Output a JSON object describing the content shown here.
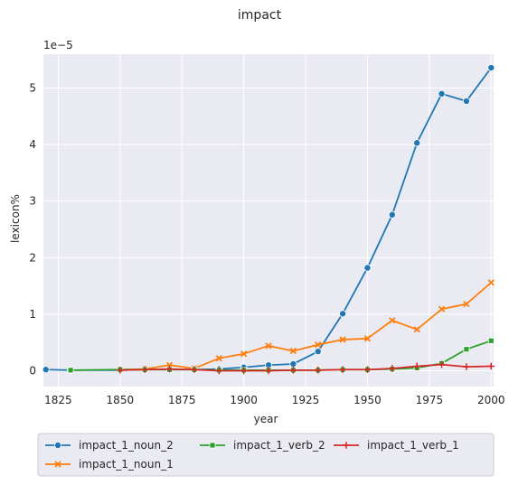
{
  "chart_data": {
    "type": "line",
    "title": "impact",
    "xlabel": "year",
    "ylabel": "lexicon%",
    "y_scale_label": "1e−5",
    "xlim": [
      1819,
      2001
    ],
    "ylim": [
      -0.28,
      5.6
    ],
    "x_ticks": [
      1825,
      1850,
      1875,
      1900,
      1925,
      1950,
      1975,
      2000
    ],
    "y_ticks": [
      0,
      1,
      2,
      3,
      4,
      5
    ],
    "grid": true,
    "legend_position": "bottom",
    "series": [
      {
        "name": "impact_1_noun_2",
        "color": "#1f77b4",
        "marker": "circle",
        "x": [
          1820,
          1830,
          1850,
          1860,
          1870,
          1880,
          1890,
          1900,
          1910,
          1920,
          1930,
          1940,
          1950,
          1960,
          1970,
          1980,
          1990,
          2000
        ],
        "values": [
          0.02,
          0.01,
          0.01,
          0.02,
          0.02,
          0.02,
          0.03,
          0.06,
          0.1,
          0.12,
          0.34,
          1.01,
          1.82,
          2.76,
          4.03,
          4.9,
          4.77,
          5.36
        ]
      },
      {
        "name": "impact_1_noun_1",
        "color": "#ff7f0e",
        "marker": "x",
        "x": [
          1850,
          1860,
          1870,
          1880,
          1890,
          1900,
          1910,
          1920,
          1930,
          1940,
          1950,
          1960,
          1970,
          1980,
          1990,
          2000
        ],
        "values": [
          0.02,
          0.03,
          0.1,
          0.04,
          0.22,
          0.3,
          0.44,
          0.35,
          0.46,
          0.55,
          0.57,
          0.89,
          0.73,
          1.09,
          1.18,
          1.56
        ]
      },
      {
        "name": "impact_1_verb_2",
        "color": "#2ca02c",
        "marker": "square",
        "x": [
          1830,
          1850,
          1860,
          1870,
          1880,
          1890,
          1900,
          1910,
          1920,
          1930,
          1940,
          1950,
          1960,
          1970,
          1980,
          1990,
          2000
        ],
        "values": [
          0.01,
          0.02,
          0.02,
          0.02,
          0.02,
          0.01,
          0.01,
          0.01,
          0.01,
          0.01,
          0.02,
          0.02,
          0.03,
          0.05,
          0.13,
          0.38,
          0.53
        ]
      },
      {
        "name": "impact_1_verb_1",
        "color": "#d62728",
        "marker": "plus",
        "x": [
          1850,
          1860,
          1870,
          1880,
          1890,
          1900,
          1910,
          1920,
          1930,
          1940,
          1950,
          1960,
          1970,
          1980,
          1990,
          2000
        ],
        "values": [
          0.01,
          0.02,
          0.03,
          0.02,
          0.0,
          0.0,
          0.0,
          0.01,
          0.01,
          0.02,
          0.02,
          0.04,
          0.08,
          0.11,
          0.07,
          0.08
        ]
      }
    ]
  }
}
